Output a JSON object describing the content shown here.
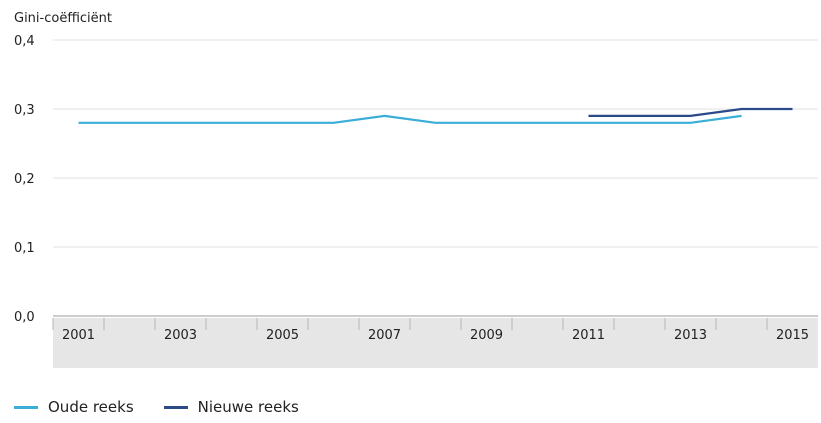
{
  "chart_data": {
    "type": "line",
    "title": "",
    "ylabel": "Gini-coëfficiënt",
    "xlabel": "",
    "ylim": [
      0,
      0.4
    ],
    "y_ticks": [
      "0,0",
      "0,1",
      "0,2",
      "0,3",
      "0,4"
    ],
    "x_tick_labels": [
      "2001",
      "2003",
      "2005",
      "2007",
      "2009",
      "2011",
      "2013",
      "2015"
    ],
    "grid": true,
    "legend_position": "bottom-left",
    "series": [
      {
        "name": "Oude reeks",
        "color": "#3aaed8",
        "x": [
          2001,
          2002,
          2003,
          2004,
          2005,
          2006,
          2007,
          2008,
          2009,
          2010,
          2011,
          2012,
          2013,
          2014
        ],
        "y": [
          0.28,
          0.28,
          0.28,
          0.28,
          0.28,
          0.28,
          0.29,
          0.28,
          0.28,
          0.28,
          0.28,
          0.28,
          0.28,
          0.29
        ]
      },
      {
        "name": "Nieuwe reeks",
        "color": "#2a4a8a",
        "x": [
          2011,
          2012,
          2013,
          2014,
          2015
        ],
        "y": [
          0.29,
          0.29,
          0.29,
          0.3,
          0.3
        ]
      }
    ]
  }
}
